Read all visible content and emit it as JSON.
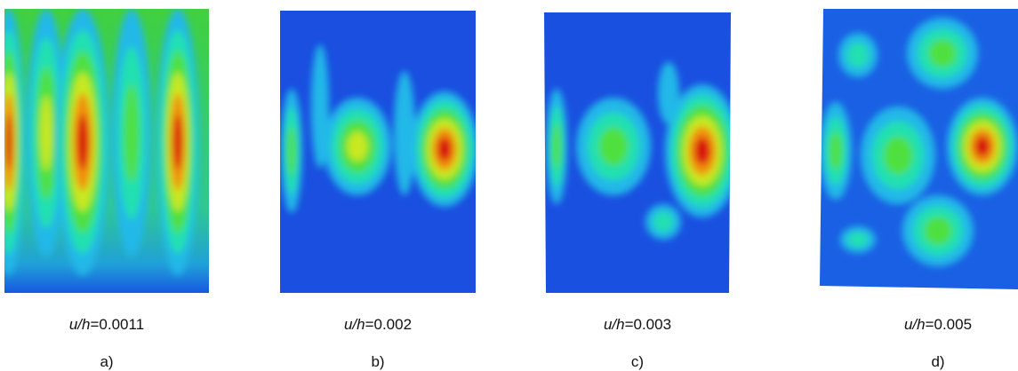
{
  "panels": [
    {
      "symbol": "u/h",
      "value": "=0.0011",
      "label": "a)"
    },
    {
      "symbol": "u/h",
      "value": "=0.002",
      "label": "b)"
    },
    {
      "symbol": "u/h",
      "value": "=0.003",
      "label": "c)"
    },
    {
      "symbol": "u/h",
      "value": "=0.005",
      "label": "d)"
    }
  ]
}
